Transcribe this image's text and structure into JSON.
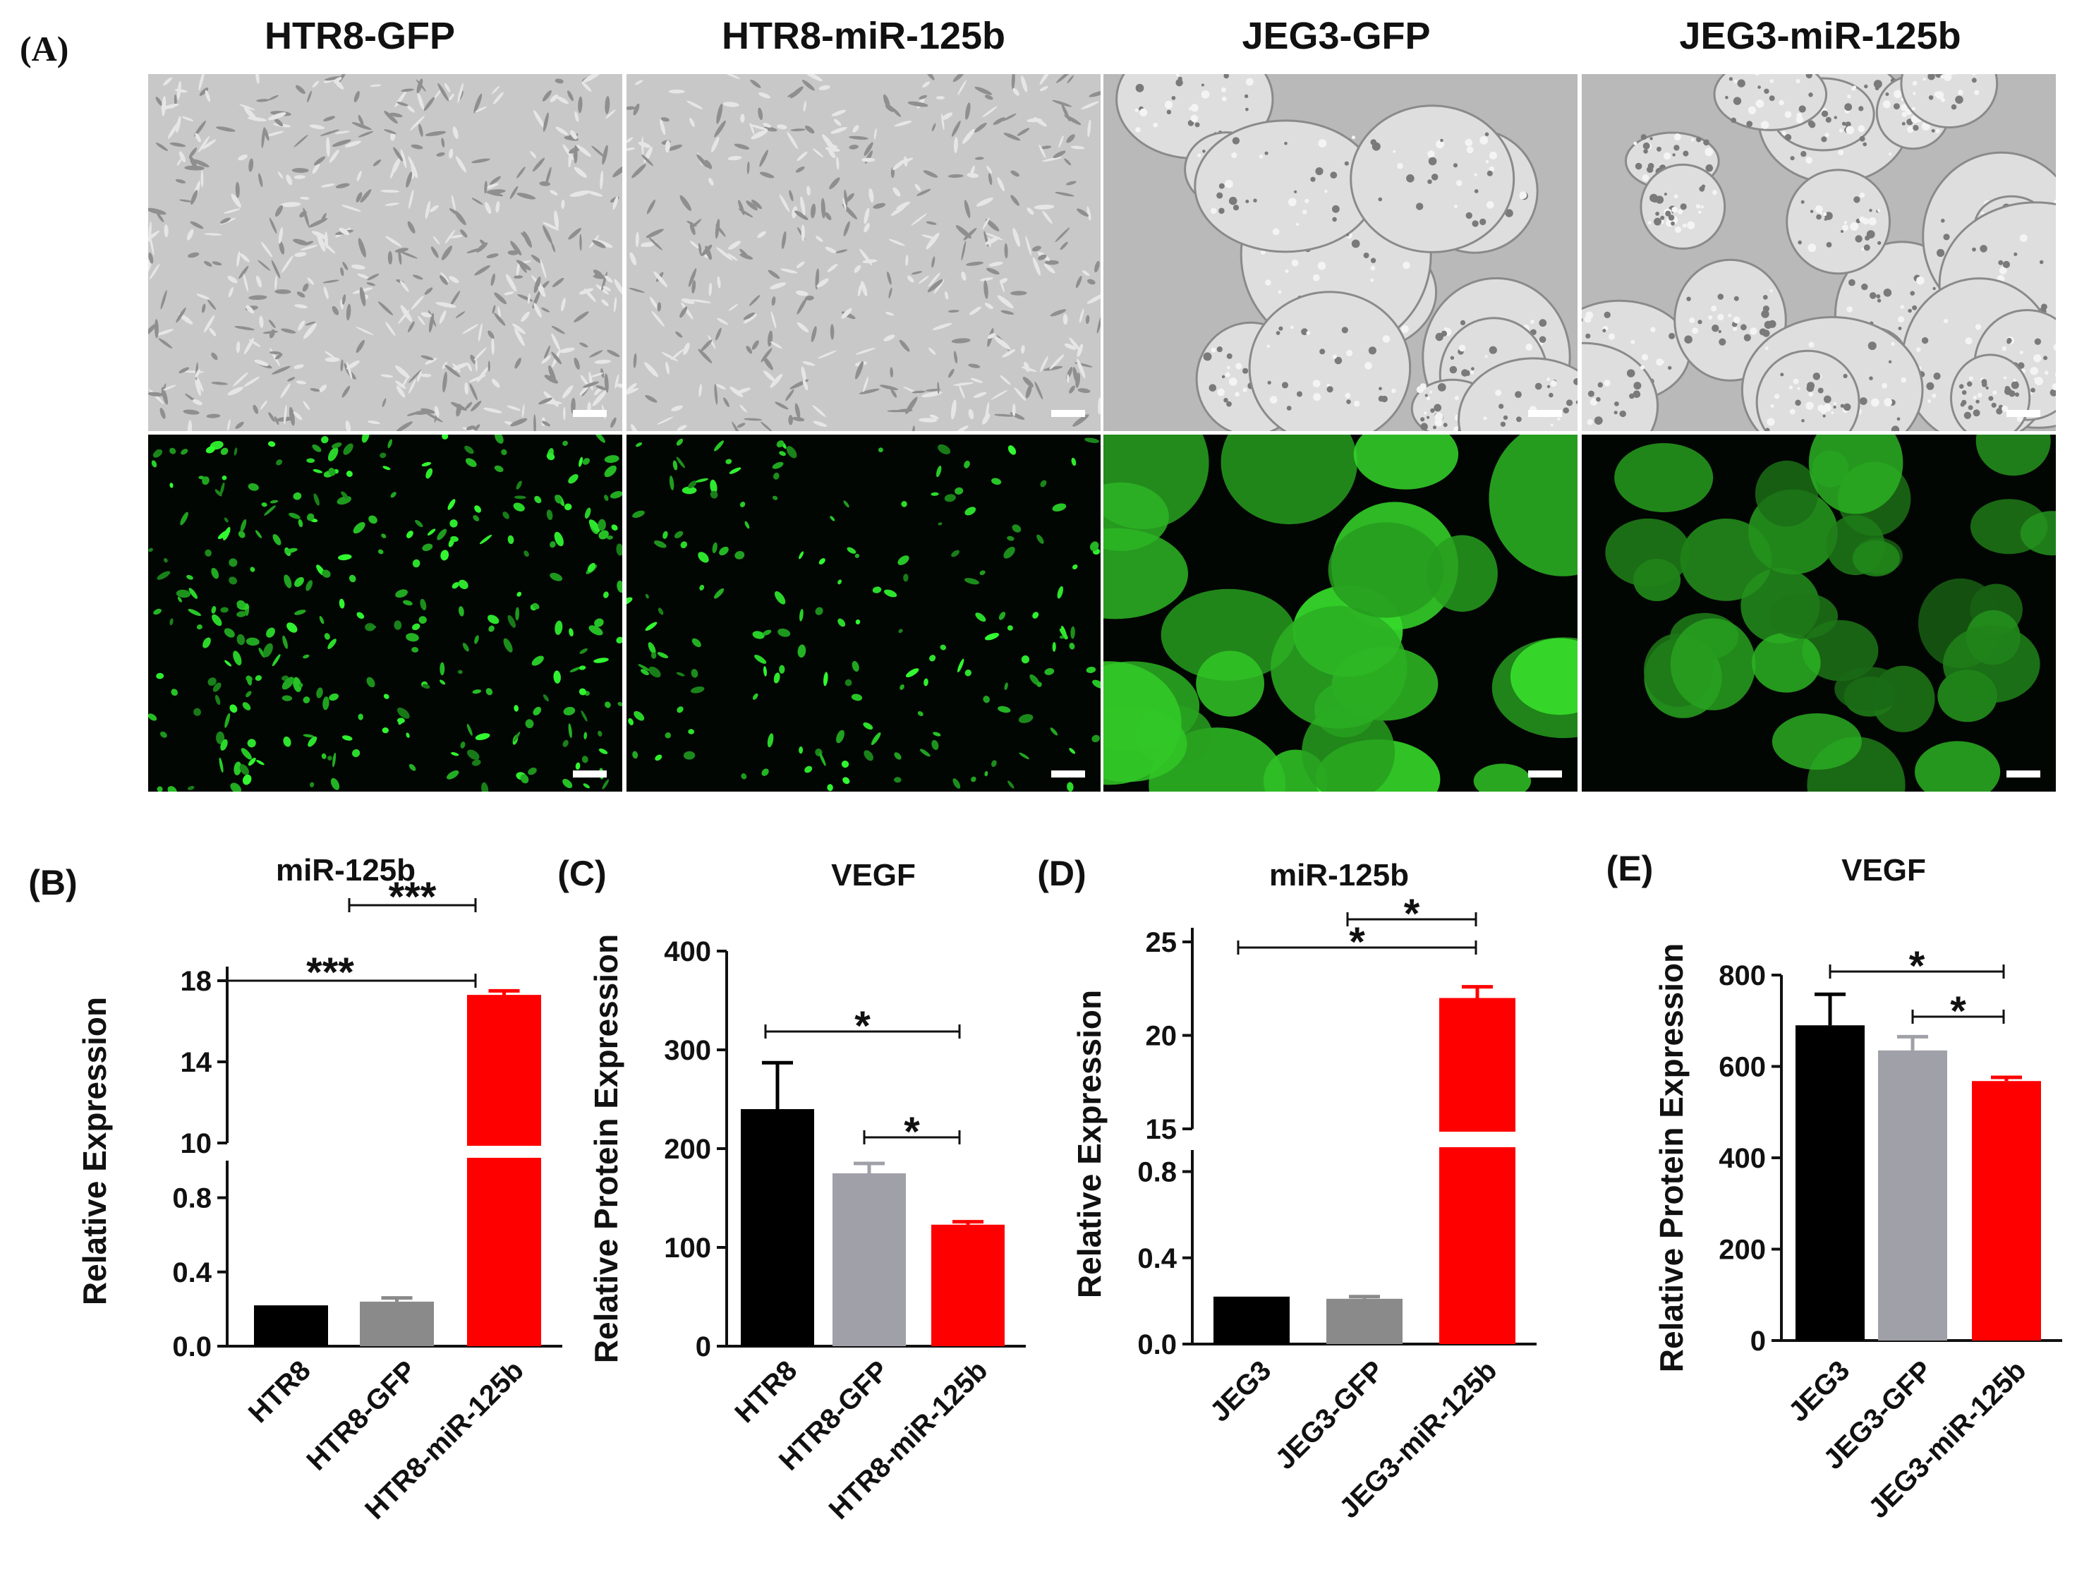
{
  "panel_A": {
    "letter": "(A)",
    "columns": [
      {
        "title": "HTR8-GFP"
      },
      {
        "title": "HTR8-miR-125b"
      },
      {
        "title": "JEG3-GFP"
      },
      {
        "title": "JEG3-miR-125b"
      }
    ]
  },
  "chart_data": [
    {
      "panel": "(B)",
      "type": "bar",
      "title": "miR-125b",
      "ylabel": "Relative Expression",
      "categories": [
        "HTR8",
        "HTR8-GFP",
        "HTR8-miR-125b"
      ],
      "values": [
        0.22,
        0.24,
        17.3
      ],
      "errors": [
        0.0,
        0.02,
        0.2
      ],
      "colors": [
        "#000000",
        "#8a8a8a",
        "#ff0000"
      ],
      "y_axis_break": {
        "lower": [
          0,
          1.0
        ],
        "upper": [
          10,
          18
        ]
      },
      "yticks_lower": [
        "0.0",
        "0.4",
        "0.8"
      ],
      "yticks_upper": [
        "10",
        "14",
        "18"
      ],
      "significance": [
        {
          "from": 0,
          "to": 2,
          "label": "***"
        },
        {
          "from": 1,
          "to": 2,
          "label": "***"
        }
      ]
    },
    {
      "panel": "(C)",
      "type": "bar",
      "title": "VEGF",
      "ylabel": "Relative Protein Expression",
      "categories": [
        "HTR8",
        "HTR8-GFP",
        "HTR8-miR-125b"
      ],
      "values": [
        240,
        175,
        123
      ],
      "errors": [
        47,
        10,
        3
      ],
      "colors": [
        "#000000",
        "#a0a0a8",
        "#ff0000"
      ],
      "ylim": [
        0,
        400
      ],
      "yticks": [
        "0",
        "100",
        "200",
        "300",
        "400"
      ],
      "significance": [
        {
          "from": 0,
          "to": 2,
          "label": "*"
        },
        {
          "from": 1,
          "to": 2,
          "label": "*"
        }
      ]
    },
    {
      "panel": "(D)",
      "type": "bar",
      "title": "miR-125b",
      "ylabel": "Relative Expression",
      "categories": [
        "JEG3",
        "JEG3-GFP",
        "JEG3-miR-125b"
      ],
      "values": [
        0.22,
        0.21,
        22.0
      ],
      "errors": [
        0.0,
        0.01,
        0.6
      ],
      "colors": [
        "#000000",
        "#8a8a8a",
        "#ff0000"
      ],
      "y_axis_break": {
        "lower": [
          0,
          0.9
        ],
        "upper": [
          15,
          25
        ]
      },
      "yticks_lower": [
        "0.0",
        "0.4",
        "0.8"
      ],
      "yticks_upper": [
        "15",
        "20",
        "25"
      ],
      "significance": [
        {
          "from": 0,
          "to": 2,
          "label": "*"
        },
        {
          "from": 1,
          "to": 2,
          "label": "*"
        }
      ]
    },
    {
      "panel": "(E)",
      "type": "bar",
      "title": "VEGF",
      "ylabel": "Relative Protein Expression",
      "categories": [
        "JEG3",
        "JEG3-GFP",
        "JEG3-miR-125b"
      ],
      "values": [
        690,
        635,
        568
      ],
      "errors": [
        68,
        30,
        8
      ],
      "colors": [
        "#000000",
        "#a0a0a8",
        "#ff0000"
      ],
      "ylim": [
        0,
        800
      ],
      "yticks": [
        "0",
        "200",
        "400",
        "600",
        "800"
      ],
      "significance": [
        {
          "from": 0,
          "to": 2,
          "label": "*"
        },
        {
          "from": 1,
          "to": 2,
          "label": "*"
        }
      ]
    }
  ]
}
